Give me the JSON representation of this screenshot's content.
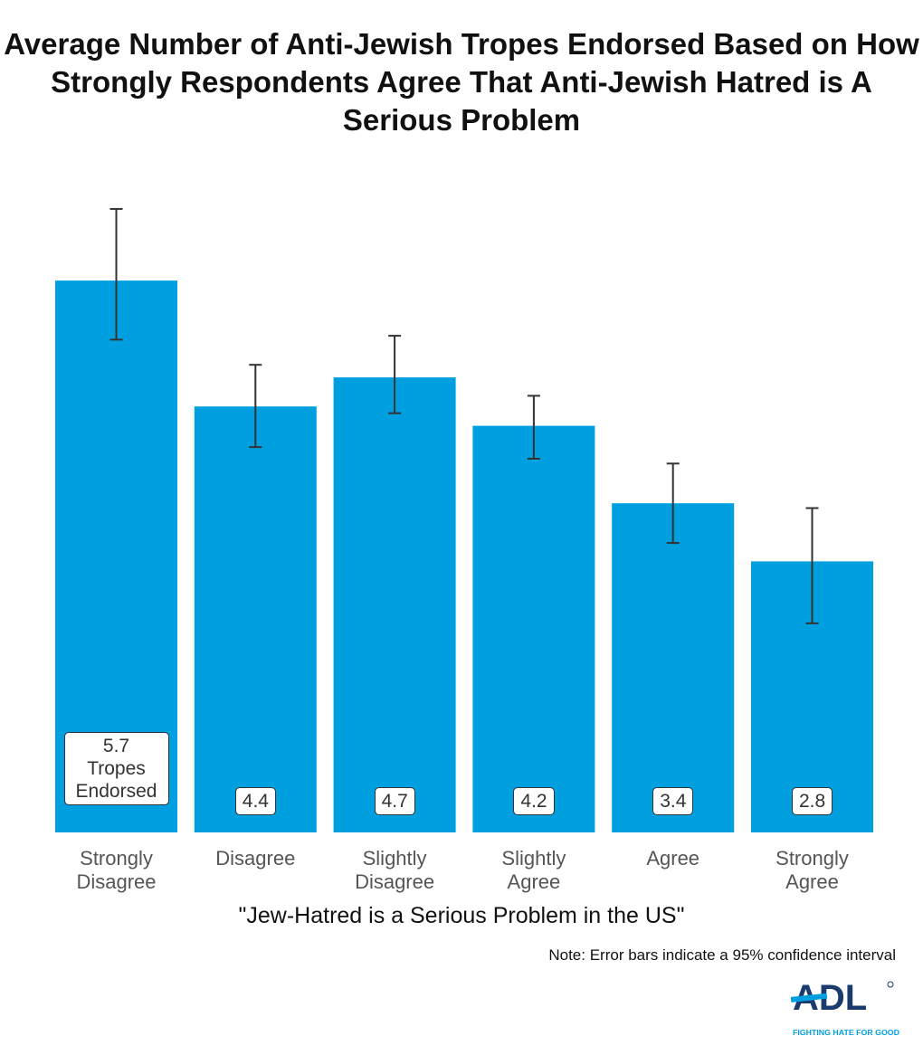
{
  "chart_data": {
    "type": "bar",
    "title": "Average Number of Anti-Jewish Tropes Endorsed Based on How Strongly Respondents Agree That Anti-Jewish Hatred is A Serious Problem",
    "xlabel": "\"Jew-Hatred is a Serious Problem in the US\"",
    "ylabel": "",
    "categories": [
      "Strongly Disagree",
      "Disagree",
      "Slightly Disagree",
      "Slightly Agree",
      "Agree",
      "Strongly Agree"
    ],
    "values": [
      5.7,
      4.4,
      4.7,
      4.2,
      3.4,
      2.8
    ],
    "value_labels": [
      "5.7",
      "4.4",
      "4.7",
      "4.2",
      "3.4",
      "2.8"
    ],
    "first_label_suffix": "Tropes Endorsed",
    "error_low": [
      5.09,
      3.98,
      4.33,
      3.86,
      2.99,
      2.16
    ],
    "error_high": [
      6.44,
      4.83,
      5.13,
      4.51,
      3.81,
      3.35
    ],
    "ylim": [
      0,
      7
    ],
    "grid": false,
    "bar_color": "#009FDF",
    "note": "Note: Error bars indicate a 95% confidence interval"
  },
  "logo": {
    "text": "ADL",
    "tagline": "FIGHTING HATE FOR GOOD"
  }
}
